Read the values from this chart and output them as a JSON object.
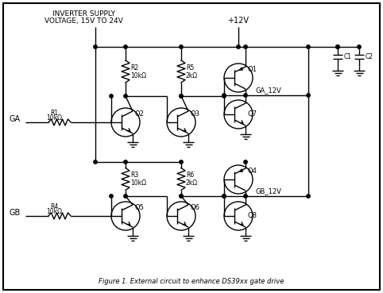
{
  "title": "Figure 1. External circuit to enhance DS39xx gate drive",
  "bg_color": "#ffffff",
  "line_color": "#000000",
  "border_color": "#000000",
  "figsize": [
    4.82,
    3.69
  ],
  "dpi": 100,
  "inv_supply_text1": "INVERTER SUPPLY",
  "inv_supply_text2": "VOLTAGE, 15V TO 24V",
  "v12_label": "+12V",
  "ga_label": "GA",
  "gb_label": "GB",
  "r1_label": "R1",
  "r1_val": "10kΩ",
  "r2_label": "R2",
  "r2_val": "10kΩ",
  "r3_label": "R3",
  "r3_val": "10kΩ",
  "r4_label": "R4",
  "r4_val": "10kΩ",
  "r5_label": "R5",
  "r5_val": "2kΩ",
  "r6_label": "R6",
  "r6_val": "2kΩ",
  "q1_label": "Q1",
  "q2_label": "Q2",
  "q3_label": "Q3",
  "q4_label": "Q4",
  "q5_label": "Q5",
  "q6_label": "Q6",
  "q7_label": "Q7",
  "q8_label": "Q8",
  "c1_label": "C1",
  "c2_label": "C2",
  "ga12v_label": "GA_12V",
  "gb12v_label": "GB_12V"
}
